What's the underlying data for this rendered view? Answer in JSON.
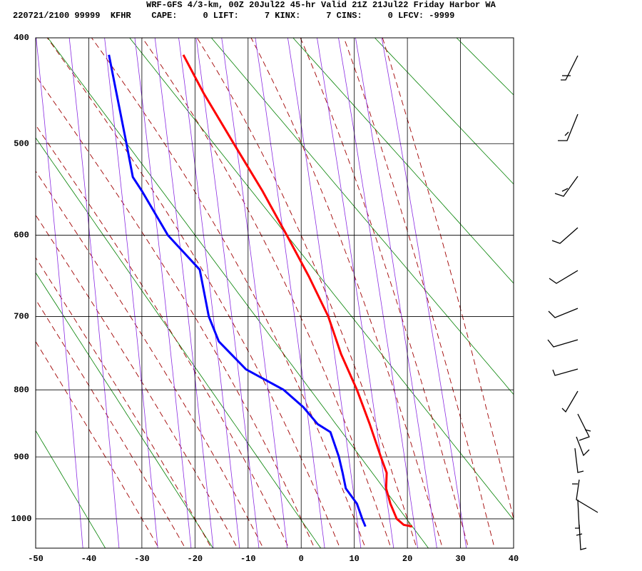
{
  "chart_data": {
    "type": "sounding",
    "title": "WRF-GFS 4/3-km, 00Z 20Jul22 45-hr Valid 21Z 21Jul22 Friday Harbor WA",
    "subtitle": "220721/2100 99999  KFHR    CAPE:     0 LIFT:     7 KINX:     7 CINS:     0 LFCV: -9999",
    "xlim": [
      -50,
      40
    ],
    "xticks": [
      -50,
      -40,
      -30,
      -20,
      -10,
      0,
      10,
      20,
      30,
      40
    ],
    "ylim": [
      1050,
      400
    ],
    "yticks": [
      400,
      500,
      600,
      700,
      800,
      900,
      1000
    ],
    "grid": true,
    "series": [
      {
        "color": "#ff0000",
        "x": [
          -22.2,
          -18.4,
          -12.7,
          -7.3,
          -2.7,
          1.5,
          5.1,
          7.5,
          10.5,
          12.9,
          15.0,
          16.1,
          16.0,
          16.8,
          18.0,
          19.3,
          20.9
        ],
        "values": [
          415,
          450,
          500,
          550,
          600,
          650,
          700,
          750,
          800,
          850,
          900,
          925,
          950,
          975,
          1000,
          1010,
          1013
        ]
      },
      {
        "color": "#0000ff",
        "x": [
          -36.2,
          -34.8,
          -32.9,
          -31.7,
          -30.0,
          -25.1,
          -19.1,
          -17.4,
          -15.5,
          -10.4,
          -3.3,
          0.4,
          3.1,
          5.5,
          7.1,
          7.8,
          8.4,
          10.5,
          11.5,
          12.1
        ],
        "values": [
          415,
          450,
          500,
          535,
          550,
          600,
          641,
          700,
          733,
          771,
          800,
          825,
          850,
          862,
          900,
          925,
          950,
          975,
          1000,
          1013
        ]
      }
    ]
  }
}
